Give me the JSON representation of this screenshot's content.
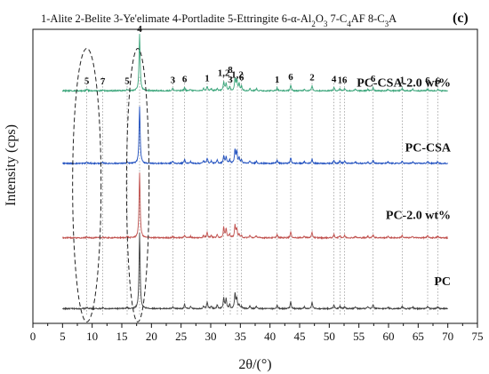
{
  "chart_data": {
    "type": "line",
    "panel_label": "(c)",
    "legend_parts": [
      {
        "t": "1-Alite 2-Belite 3-Ye'elimate 4-Portladite 5-Ettringite 6-α-Al",
        "s": "n"
      },
      {
        "t": "2",
        "s": "sub"
      },
      {
        "t": "O",
        "s": "n"
      },
      {
        "t": "3",
        "s": "sub"
      },
      {
        "t": " 7-C",
        "s": "n"
      },
      {
        "t": "4",
        "s": "sub"
      },
      {
        "t": "AF 8-C",
        "s": "n"
      },
      {
        "t": "3",
        "s": "sub"
      },
      {
        "t": "A",
        "s": "n"
      }
    ],
    "xlabel": "2θ/(°)",
    "ylabel": "Intensity (cps)",
    "xlim": [
      0,
      75
    ],
    "xticks": [
      0,
      5,
      10,
      15,
      20,
      25,
      30,
      35,
      40,
      45,
      50,
      55,
      60,
      65,
      70,
      75
    ],
    "x_range": [
      5,
      70
    ],
    "series": [
      {
        "name": "PC",
        "color": "#3f3f3f",
        "baseline": 0.05,
        "peaks": [
          [
            9.1,
            0.004
          ],
          [
            11.8,
            0.003
          ],
          [
            15.9,
            0.004
          ],
          [
            18.0,
            0.26
          ],
          [
            23.6,
            0.005
          ],
          [
            25.6,
            0.014
          ],
          [
            26.6,
            0.006
          ],
          [
            28.8,
            0.009
          ],
          [
            29.4,
            0.023
          ],
          [
            30.1,
            0.008
          ],
          [
            31.1,
            0.012
          ],
          [
            32.2,
            0.036
          ],
          [
            32.6,
            0.033
          ],
          [
            33.2,
            0.014
          ],
          [
            34.1,
            0.05
          ],
          [
            34.4,
            0.034
          ],
          [
            34.8,
            0.012
          ],
          [
            35.2,
            0.007
          ],
          [
            36.6,
            0.009
          ],
          [
            37.7,
            0.008
          ],
          [
            41.2,
            0.012
          ],
          [
            43.5,
            0.024
          ],
          [
            45.8,
            0.006
          ],
          [
            47.1,
            0.022
          ],
          [
            50.8,
            0.013
          ],
          [
            51.8,
            0.01
          ],
          [
            52.6,
            0.009
          ],
          [
            54.4,
            0.006
          ],
          [
            56.5,
            0.006
          ],
          [
            57.4,
            0.014
          ],
          [
            59.9,
            0.006
          ],
          [
            62.3,
            0.009
          ],
          [
            64.1,
            0.006
          ],
          [
            66.6,
            0.008
          ],
          [
            68.3,
            0.006
          ]
        ]
      },
      {
        "name": "PC-2.0 wt%",
        "color": "#c0504d",
        "baseline": 0.291,
        "peaks": [
          [
            9.1,
            0.003
          ],
          [
            11.8,
            0.003
          ],
          [
            15.9,
            0.004
          ],
          [
            18.0,
            0.222
          ],
          [
            23.6,
            0.004
          ],
          [
            25.6,
            0.01
          ],
          [
            26.6,
            0.005
          ],
          [
            28.8,
            0.008
          ],
          [
            29.4,
            0.02
          ],
          [
            30.1,
            0.008
          ],
          [
            31.1,
            0.01
          ],
          [
            32.2,
            0.036
          ],
          [
            32.6,
            0.03
          ],
          [
            33.2,
            0.012
          ],
          [
            34.1,
            0.042
          ],
          [
            34.4,
            0.03
          ],
          [
            34.8,
            0.01
          ],
          [
            35.2,
            0.006
          ],
          [
            36.6,
            0.008
          ],
          [
            37.7,
            0.007
          ],
          [
            41.2,
            0.011
          ],
          [
            43.5,
            0.02
          ],
          [
            45.8,
            0.006
          ],
          [
            47.1,
            0.018
          ],
          [
            50.8,
            0.011
          ],
          [
            51.8,
            0.008
          ],
          [
            52.6,
            0.008
          ],
          [
            54.4,
            0.005
          ],
          [
            56.5,
            0.005
          ],
          [
            57.4,
            0.011
          ],
          [
            59.9,
            0.005
          ],
          [
            62.3,
            0.008
          ],
          [
            64.1,
            0.005
          ],
          [
            66.6,
            0.007
          ],
          [
            68.3,
            0.005
          ]
        ]
      },
      {
        "name": "PC-CSA",
        "color": "#1f4fbf",
        "baseline": 0.544,
        "peaks": [
          [
            9.1,
            0.004
          ],
          [
            11.8,
            0.003
          ],
          [
            15.9,
            0.004
          ],
          [
            18.0,
            0.193
          ],
          [
            23.6,
            0.008
          ],
          [
            25.6,
            0.014
          ],
          [
            26.6,
            0.006
          ],
          [
            28.8,
            0.009
          ],
          [
            29.4,
            0.019
          ],
          [
            30.1,
            0.008
          ],
          [
            31.1,
            0.011
          ],
          [
            32.2,
            0.026
          ],
          [
            32.6,
            0.022
          ],
          [
            33.2,
            0.012
          ],
          [
            34.1,
            0.046
          ],
          [
            34.4,
            0.038
          ],
          [
            34.8,
            0.018
          ],
          [
            35.2,
            0.012
          ],
          [
            36.6,
            0.008
          ],
          [
            37.7,
            0.008
          ],
          [
            41.2,
            0.011
          ],
          [
            43.5,
            0.019
          ],
          [
            45.8,
            0.006
          ],
          [
            47.1,
            0.015
          ],
          [
            50.8,
            0.01
          ],
          [
            51.8,
            0.009
          ],
          [
            52.6,
            0.008
          ],
          [
            54.4,
            0.005
          ],
          [
            56.5,
            0.005
          ],
          [
            57.4,
            0.011
          ],
          [
            59.9,
            0.005
          ],
          [
            62.3,
            0.007
          ],
          [
            64.1,
            0.005
          ],
          [
            66.6,
            0.007
          ],
          [
            68.3,
            0.005
          ]
        ]
      },
      {
        "name": "PC-CSA-2.0 wt%",
        "color": "#3aa57a",
        "baseline": 0.791,
        "peaks": [
          [
            9.1,
            0.005
          ],
          [
            11.8,
            0.003
          ],
          [
            15.9,
            0.004
          ],
          [
            18.0,
            0.193
          ],
          [
            23.6,
            0.008
          ],
          [
            25.6,
            0.011
          ],
          [
            26.6,
            0.005
          ],
          [
            28.8,
            0.008
          ],
          [
            29.4,
            0.014
          ],
          [
            30.1,
            0.007
          ],
          [
            31.1,
            0.009
          ],
          [
            32.2,
            0.03
          ],
          [
            32.6,
            0.026
          ],
          [
            33.2,
            0.013
          ],
          [
            34.1,
            0.04
          ],
          [
            34.4,
            0.036
          ],
          [
            34.8,
            0.024
          ],
          [
            35.2,
            0.015
          ],
          [
            36.6,
            0.008
          ],
          [
            37.7,
            0.008
          ],
          [
            41.2,
            0.01
          ],
          [
            43.5,
            0.018
          ],
          [
            45.8,
            0.006
          ],
          [
            47.1,
            0.017
          ],
          [
            50.8,
            0.011
          ],
          [
            51.8,
            0.008
          ],
          [
            52.6,
            0.008
          ],
          [
            54.4,
            0.005
          ],
          [
            56.5,
            0.005
          ],
          [
            57.4,
            0.012
          ],
          [
            59.9,
            0.005
          ],
          [
            62.3,
            0.008
          ],
          [
            64.1,
            0.005
          ],
          [
            66.6,
            0.007
          ],
          [
            68.3,
            0.005
          ]
        ]
      }
    ],
    "series_label_fracs": [
      0.13,
      0.355,
      0.585,
      0.805
    ],
    "phase_labels": [
      {
        "text": "5",
        "x": 9.1
      },
      {
        "text": "7",
        "x": 11.8
      },
      {
        "text": "5",
        "x": 15.9
      },
      {
        "text": "4",
        "x": 18.0
      },
      {
        "text": "3",
        "x": 23.6
      },
      {
        "text": "6",
        "x": 25.6
      },
      {
        "text": "1",
        "x": 29.4
      },
      {
        "text": "1,2",
        "x": 32.2
      },
      {
        "text": "3",
        "x": 33.3
      },
      {
        "text": "8",
        "x": 33.3
      },
      {
        "text": "1,2",
        "x": 34.5
      },
      {
        "text": "6",
        "x": 35.2
      },
      {
        "text": "1",
        "x": 41.2
      },
      {
        "text": "6",
        "x": 43.5
      },
      {
        "text": "2",
        "x": 47.1
      },
      {
        "text": "4",
        "x": 50.8
      },
      {
        "text": "1",
        "x": 51.8
      },
      {
        "text": "6",
        "x": 52.6
      },
      {
        "text": "6",
        "x": 57.4
      },
      {
        "text": "1",
        "x": 62.3
      },
      {
        "text": "6",
        "x": 66.6
      },
      {
        "text": "6",
        "x": 68.3
      }
    ],
    "highlight_ellipses": [
      {
        "x_center": 9.1,
        "x_halfwidth": 2.4
      },
      {
        "x_center": 17.7,
        "x_halfwidth": 1.9
      }
    ],
    "grid": false,
    "legend_position": "top"
  }
}
